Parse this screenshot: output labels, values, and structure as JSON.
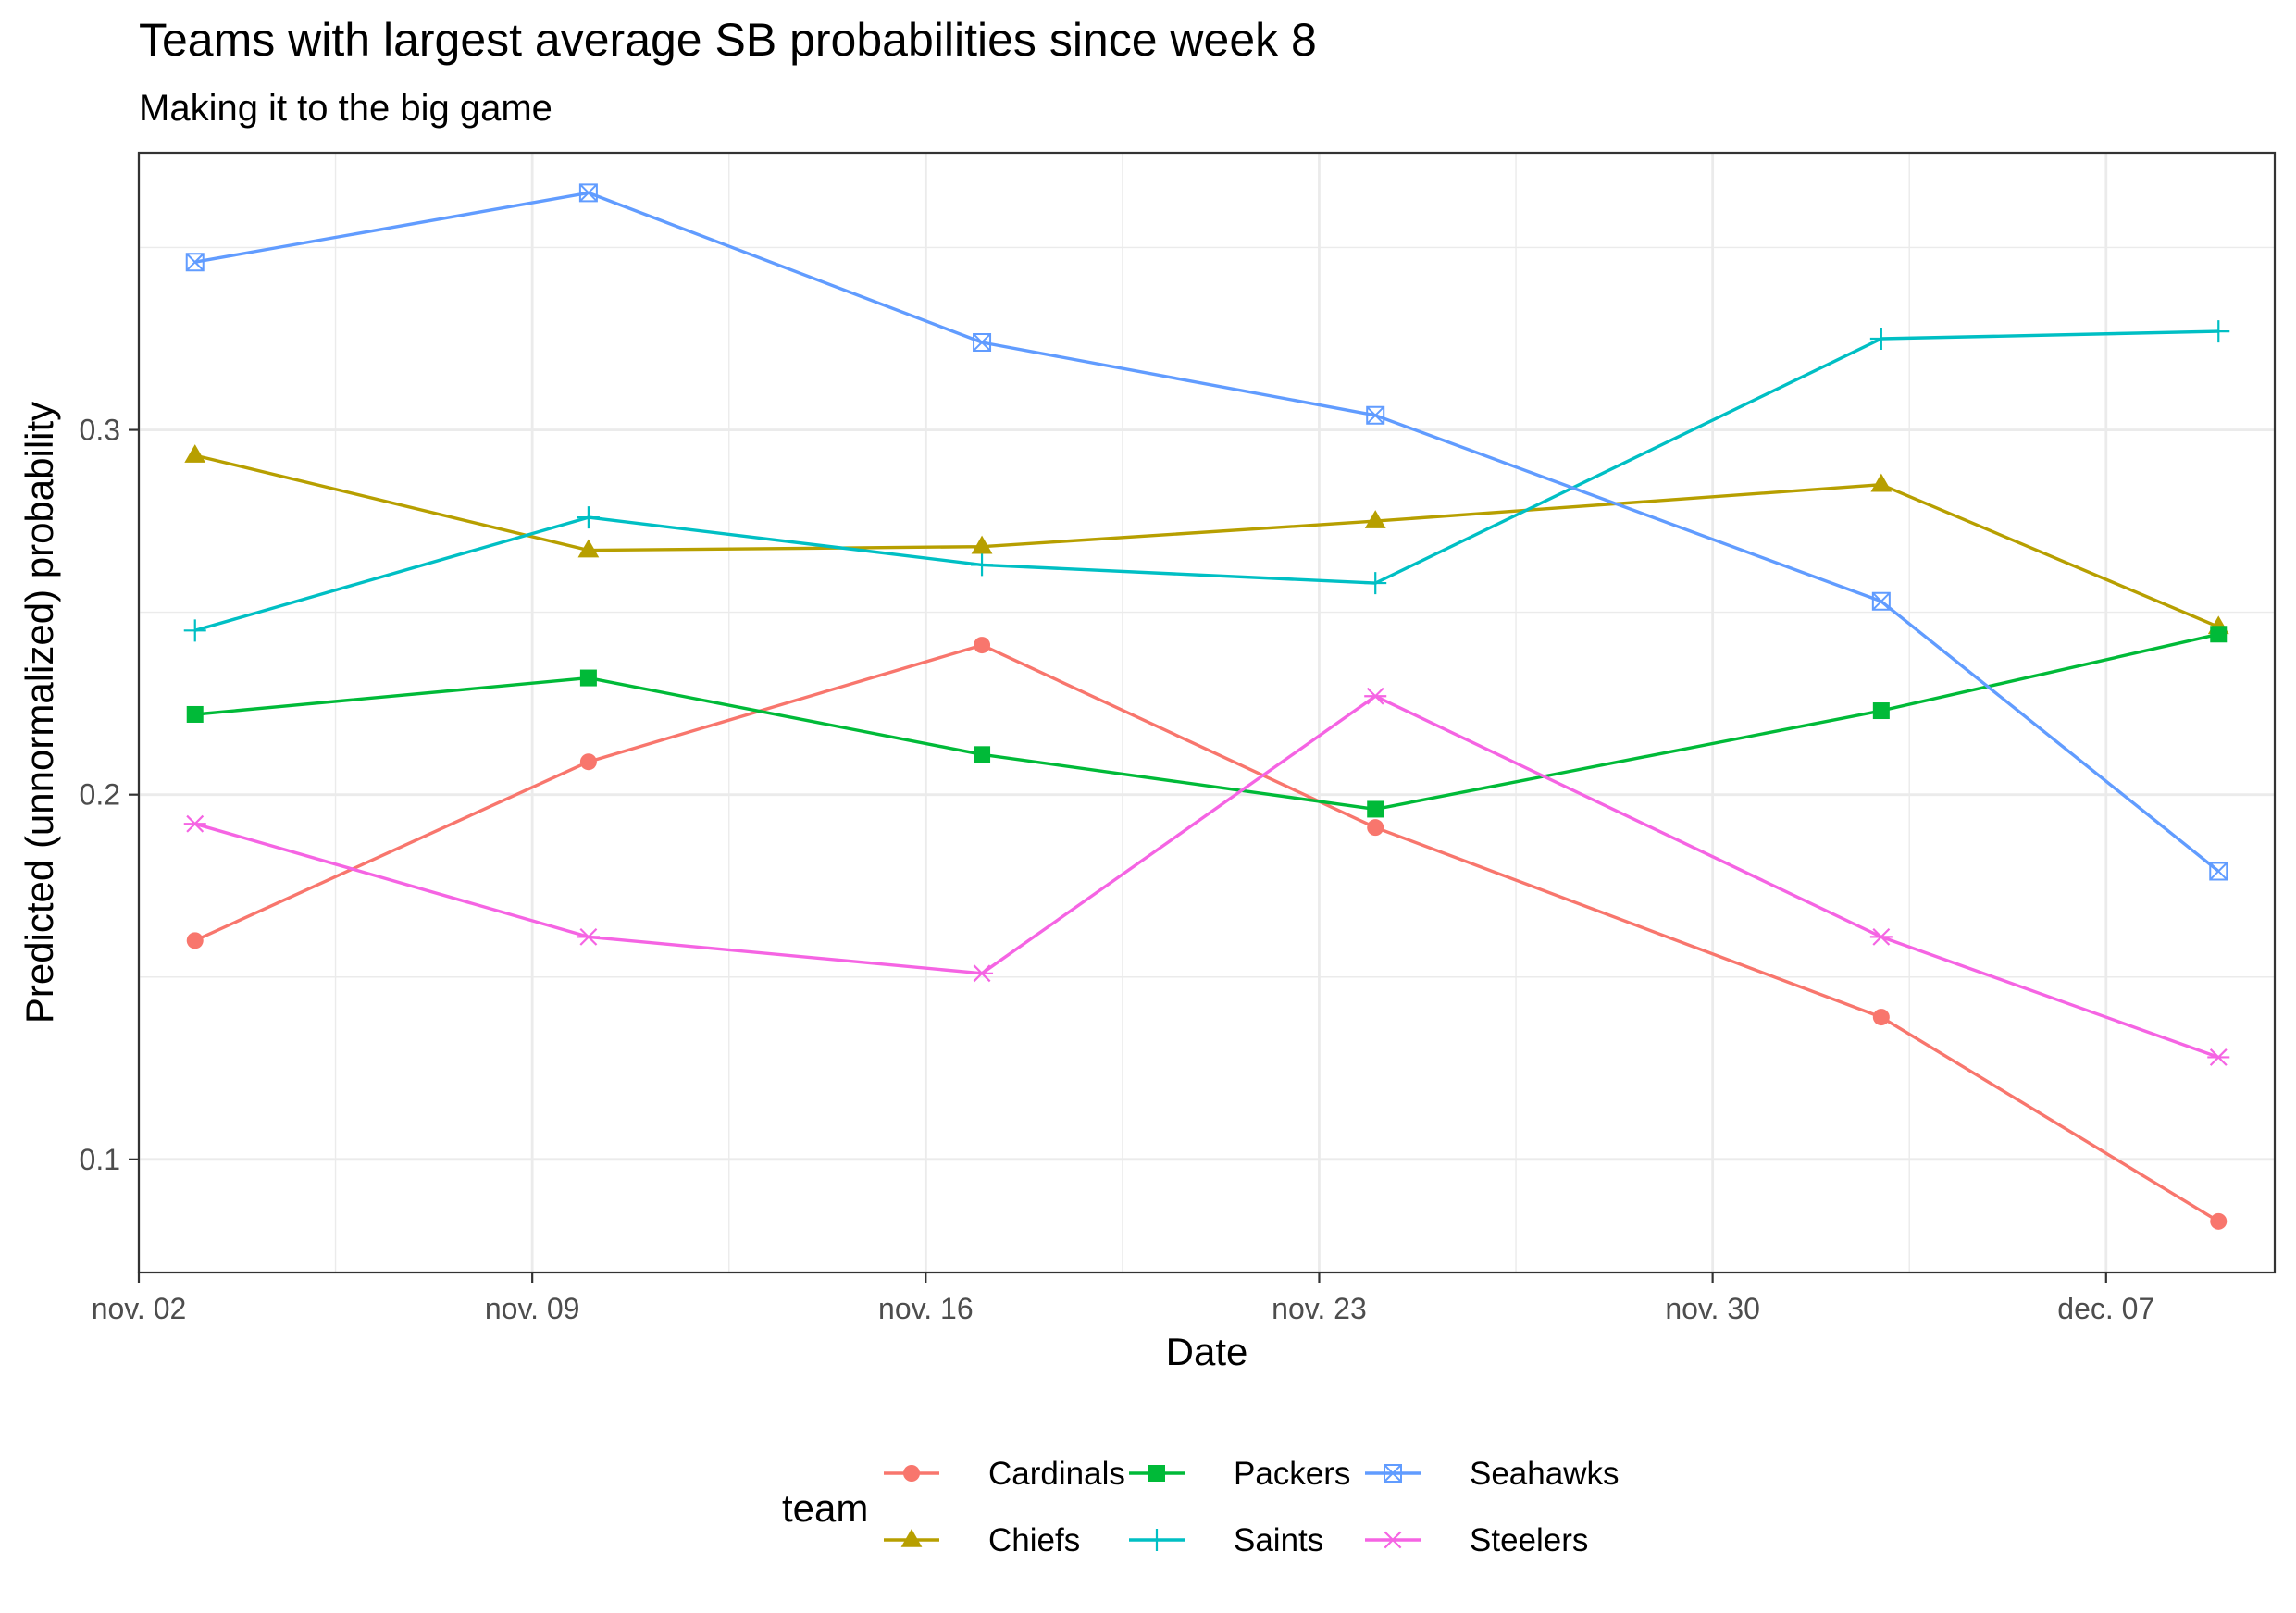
{
  "chart_data": {
    "type": "line",
    "title": "Teams with largest average SB probabilities since week 8",
    "subtitle": "Making it to the big game",
    "xlabel": "Date",
    "ylabel": "Predicted (unnormalized) probability",
    "x": [
      "2014-11-03",
      "2014-11-10",
      "2014-11-17",
      "2014-11-24",
      "2014-12-03",
      "2014-12-09"
    ],
    "xticks": [
      {
        "date": "2014-11-02",
        "label": "nov. 02"
      },
      {
        "date": "2014-11-09",
        "label": "nov. 09"
      },
      {
        "date": "2014-11-16",
        "label": "nov. 16"
      },
      {
        "date": "2014-11-23",
        "label": "nov. 23"
      },
      {
        "date": "2014-11-30",
        "label": "nov. 30"
      },
      {
        "date": "2014-12-07",
        "label": "dec. 07"
      }
    ],
    "xlim": [
      "2014-11-02",
      "2014-12-10"
    ],
    "yticks": [
      0.1,
      0.2,
      0.3
    ],
    "ytick_labels": [
      "0.1",
      "0.2",
      "0.3"
    ],
    "ylim": [
      0.069,
      0.376
    ],
    "grid": true,
    "legend": {
      "title": "team",
      "position": "bottom"
    },
    "series": [
      {
        "name": "Cardinals",
        "color": "#F8766D",
        "marker": "circle",
        "values": [
          0.16,
          0.209,
          0.241,
          0.191,
          0.139,
          0.083
        ]
      },
      {
        "name": "Chiefs",
        "color": "#B79F00",
        "marker": "triangle",
        "values": [
          0.293,
          0.267,
          0.268,
          0.275,
          0.285,
          0.246
        ]
      },
      {
        "name": "Packers",
        "color": "#00BA38",
        "marker": "square",
        "values": [
          0.222,
          0.232,
          0.211,
          0.196,
          0.223,
          0.244
        ]
      },
      {
        "name": "Saints",
        "color": "#00BFC4",
        "marker": "plus",
        "values": [
          0.245,
          0.276,
          0.263,
          0.258,
          0.325,
          0.327
        ]
      },
      {
        "name": "Seahawks",
        "color": "#619CFF",
        "marker": "square-cross",
        "values": [
          0.346,
          0.365,
          0.324,
          0.304,
          0.253,
          0.179
        ]
      },
      {
        "name": "Steelers",
        "color": "#F564E3",
        "marker": "asterisk",
        "values": [
          0.192,
          0.161,
          0.151,
          0.227,
          0.161,
          0.128
        ]
      }
    ]
  }
}
